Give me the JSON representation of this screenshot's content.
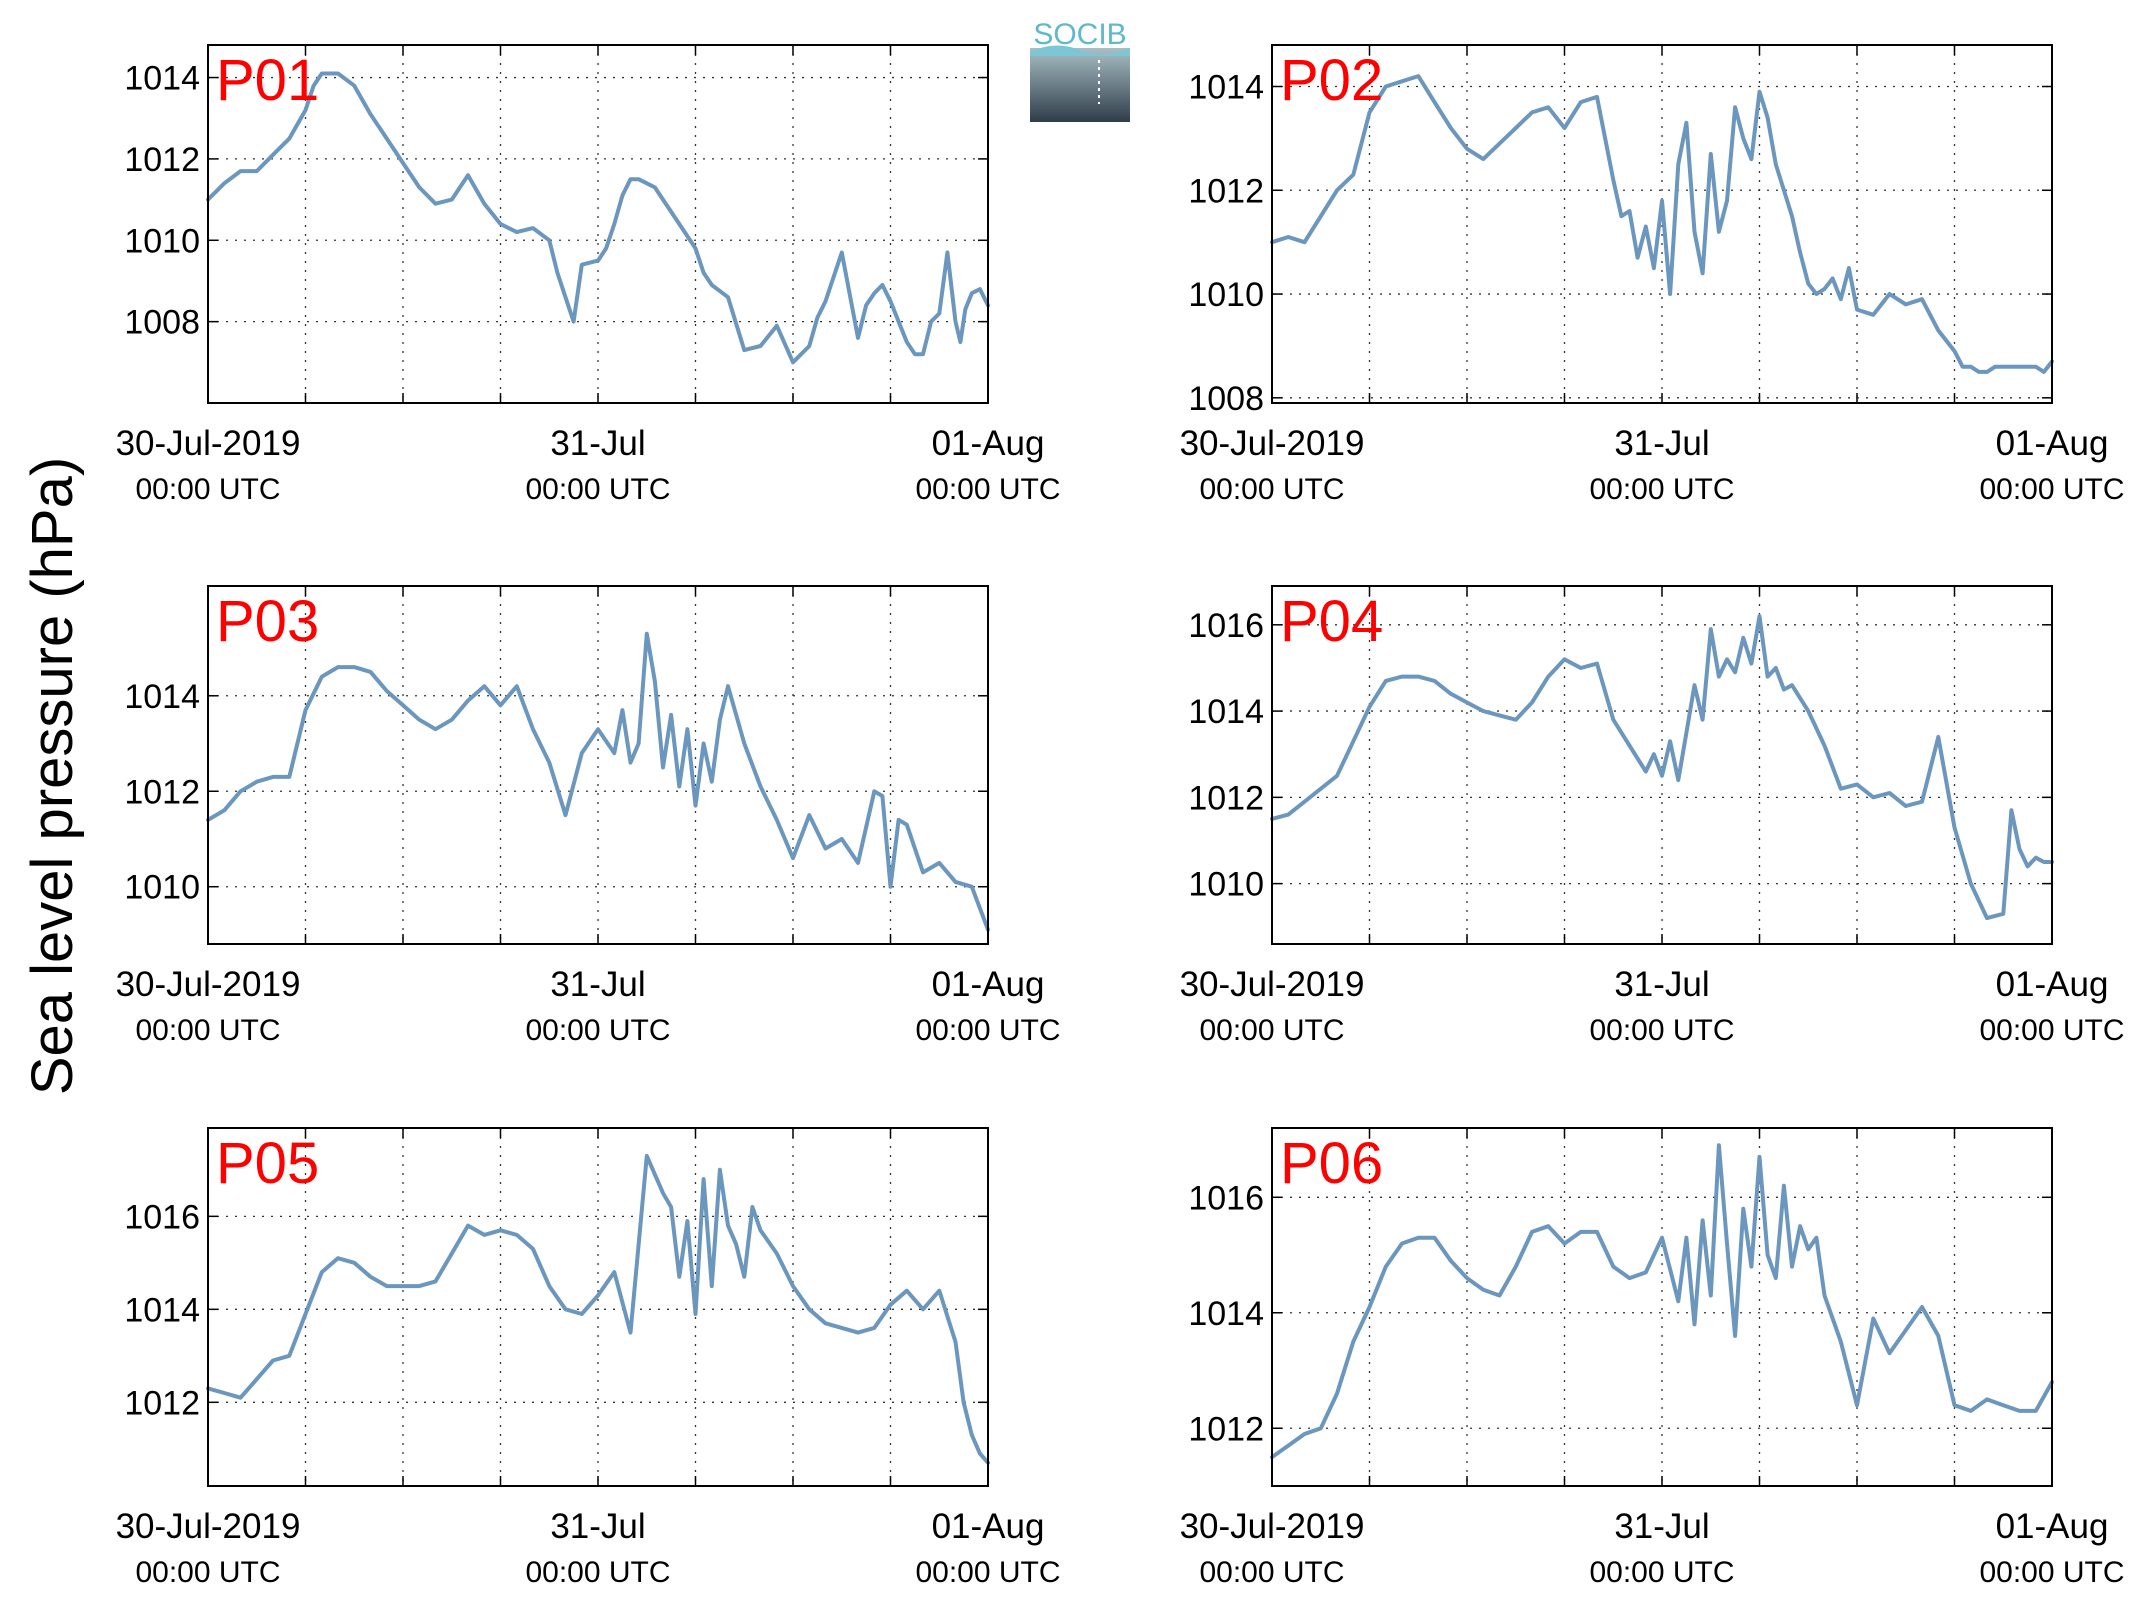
{
  "figure": {
    "ylabel": "Sea level pressure (hPa)",
    "logo_text": "SOCIB",
    "colors": {
      "line": "#6b96bd",
      "panel_label": "#ff0000",
      "logo_top": "#7cc6d6",
      "logo_bottom": "#2f3d49"
    }
  },
  "chart_data": [
    {
      "type": "line",
      "title": "P01",
      "grid": true,
      "xlim": [
        0,
        48
      ],
      "ylim": [
        1006,
        1014.8
      ],
      "x_tick_labels": [
        {
          "t": 0,
          "date": "30-Jul-2019",
          "time": "00:00 UTC"
        },
        {
          "t": 24,
          "date": "31-Jul",
          "time": "00:00 UTC"
        },
        {
          "t": 48,
          "date": "01-Aug",
          "time": "00:00 UTC"
        }
      ],
      "y_ticks": [
        1008,
        1010,
        1012,
        1014
      ],
      "series": [
        {
          "x": [
            0,
            1,
            2,
            3,
            4,
            5,
            6,
            6.5,
            7,
            8,
            9,
            10,
            11,
            12,
            13,
            14,
            15,
            16,
            17,
            18,
            19,
            20,
            21,
            21.5,
            22,
            22.5,
            23,
            24,
            24.5,
            25,
            25.5,
            26,
            26.5,
            27,
            27.5,
            28,
            29,
            30,
            30.5,
            31,
            32,
            33,
            34,
            35,
            36,
            37,
            37.5,
            38,
            39,
            40,
            40.5,
            41,
            41.5,
            42,
            42.5,
            43,
            43.5,
            44,
            44.5,
            45,
            45.5,
            46,
            46.3,
            46.6,
            47,
            47.5,
            48
          ],
          "y": [
            1011,
            1011.4,
            1011.7,
            1011.7,
            1012.1,
            1012.5,
            1013.2,
            1013.8,
            1014.1,
            1014.1,
            1013.8,
            1013.1,
            1012.5,
            1011.9,
            1011.3,
            1010.9,
            1011.0,
            1011.6,
            1010.9,
            1010.4,
            1010.2,
            1010.3,
            1010.0,
            1009.2,
            1008.6,
            1008.0,
            1009.4,
            1009.5,
            1009.8,
            1010.4,
            1011.1,
            1011.5,
            1011.5,
            1011.4,
            1011.3,
            1011.0,
            1010.4,
            1009.8,
            1009.2,
            1008.9,
            1008.6,
            1007.3,
            1007.4,
            1007.9,
            1007.0,
            1007.4,
            1008.1,
            1008.5,
            1009.7,
            1007.6,
            1008.4,
            1008.7,
            1008.9,
            1008.5,
            1008.0,
            1007.5,
            1007.2,
            1007.2,
            1008.0,
            1008.2,
            1009.7,
            1008.0,
            1007.5,
            1008.3,
            1008.7,
            1008.8,
            1008.4
          ]
        }
      ]
    },
    {
      "type": "line",
      "title": "P02",
      "grid": true,
      "xlim": [
        0,
        48
      ],
      "ylim": [
        1007.9,
        1014.8
      ],
      "x_tick_labels": [
        {
          "t": 0,
          "date": "30-Jul-2019",
          "time": "00:00 UTC"
        },
        {
          "t": 24,
          "date": "31-Jul",
          "time": "00:00 UTC"
        },
        {
          "t": 48,
          "date": "01-Aug",
          "time": "00:00 UTC"
        }
      ],
      "y_ticks": [
        1008,
        1010,
        1012,
        1014
      ],
      "series": [
        {
          "x": [
            0,
            1,
            2,
            3,
            4,
            5,
            6,
            7,
            8,
            9,
            10,
            11,
            12,
            13,
            14,
            15,
            16,
            17,
            18,
            19,
            20,
            21,
            21.5,
            22,
            22.5,
            23,
            23.5,
            24,
            24.5,
            25,
            25.5,
            26,
            26.5,
            27,
            27.5,
            28,
            28.5,
            29,
            29.5,
            30,
            30.5,
            31,
            32,
            32.5,
            33,
            33.5,
            34,
            34.5,
            35,
            35.5,
            36,
            37,
            38,
            39,
            40,
            41,
            42,
            42.5,
            43,
            43.5,
            44,
            44.5,
            45,
            46,
            47,
            47.5,
            48
          ],
          "y": [
            1011,
            1011.1,
            1011,
            1011.5,
            1012.0,
            1012.3,
            1013.5,
            1014.0,
            1014.1,
            1014.2,
            1013.7,
            1013.2,
            1012.8,
            1012.6,
            1012.9,
            1013.2,
            1013.5,
            1013.6,
            1013.2,
            1013.7,
            1013.8,
            1012.2,
            1011.5,
            1011.6,
            1010.7,
            1011.3,
            1010.5,
            1011.8,
            1010.0,
            1012.5,
            1013.3,
            1011.2,
            1010.4,
            1012.7,
            1011.2,
            1011.8,
            1013.6,
            1013.0,
            1012.6,
            1013.9,
            1013.4,
            1012.5,
            1011.5,
            1010.8,
            1010.2,
            1010.0,
            1010.1,
            1010.3,
            1009.9,
            1010.5,
            1009.7,
            1009.6,
            1010.0,
            1009.8,
            1009.9,
            1009.3,
            1008.9,
            1008.6,
            1008.6,
            1008.5,
            1008.5,
            1008.6,
            1008.6,
            1008.6,
            1008.6,
            1008.5,
            1008.7
          ]
        }
      ]
    },
    {
      "type": "line",
      "title": "P03",
      "grid": true,
      "xlim": [
        0,
        48
      ],
      "ylim": [
        1008.8,
        1016.3
      ],
      "x_tick_labels": [
        {
          "t": 0,
          "date": "30-Jul-2019",
          "time": "00:00 UTC"
        },
        {
          "t": 24,
          "date": "31-Jul",
          "time": "00:00 UTC"
        },
        {
          "t": 48,
          "date": "01-Aug",
          "time": "00:00 UTC"
        }
      ],
      "y_ticks": [
        1010,
        1012,
        1014
      ],
      "series": [
        {
          "x": [
            0,
            1,
            2,
            3,
            4,
            5,
            6,
            7,
            8,
            9,
            10,
            11,
            12,
            13,
            14,
            15,
            16,
            17,
            18,
            19,
            20,
            21,
            22,
            23,
            24,
            25,
            25.5,
            26,
            26.5,
            27,
            27.5,
            28,
            28.5,
            29,
            29.5,
            30,
            30.5,
            31,
            31.5,
            32,
            33,
            34,
            35,
            36,
            37,
            38,
            39,
            40,
            41,
            41.5,
            42,
            42.5,
            43,
            44,
            45,
            46,
            47,
            48
          ],
          "y": [
            1011.4,
            1011.6,
            1012.0,
            1012.2,
            1012.3,
            1012.3,
            1013.7,
            1014.4,
            1014.6,
            1014.6,
            1014.5,
            1014.1,
            1013.8,
            1013.5,
            1013.3,
            1013.5,
            1013.9,
            1014.2,
            1013.8,
            1014.2,
            1013.3,
            1012.6,
            1011.5,
            1012.8,
            1013.3,
            1012.8,
            1013.7,
            1012.6,
            1013.0,
            1015.3,
            1014.3,
            1012.5,
            1013.6,
            1012.1,
            1013.3,
            1011.7,
            1013.0,
            1012.2,
            1013.5,
            1014.2,
            1013.0,
            1012.1,
            1011.4,
            1010.6,
            1011.5,
            1010.8,
            1011.0,
            1010.5,
            1012.0,
            1011.9,
            1010.0,
            1011.4,
            1011.3,
            1010.3,
            1010.5,
            1010.1,
            1010.0,
            1009.1
          ]
        }
      ]
    },
    {
      "type": "line",
      "title": "P04",
      "grid": true,
      "xlim": [
        0,
        48
      ],
      "ylim": [
        1008.6,
        1016.9
      ],
      "x_tick_labels": [
        {
          "t": 0,
          "date": "30-Jul-2019",
          "time": "00:00 UTC"
        },
        {
          "t": 24,
          "date": "31-Jul",
          "time": "00:00 UTC"
        },
        {
          "t": 48,
          "date": "01-Aug",
          "time": "00:00 UTC"
        }
      ],
      "y_ticks": [
        1010,
        1012,
        1014,
        1016
      ],
      "series": [
        {
          "x": [
            0,
            1,
            2,
            3,
            4,
            5,
            6,
            7,
            8,
            9,
            10,
            11,
            12,
            13,
            14,
            15,
            16,
            17,
            18,
            19,
            20,
            21,
            22,
            23,
            23.5,
            24,
            24.5,
            25,
            25.5,
            26,
            26.5,
            27,
            27.5,
            28,
            28.5,
            29,
            29.5,
            30,
            30.5,
            31,
            31.5,
            32,
            33,
            34,
            35,
            36,
            37,
            38,
            39,
            40,
            41,
            42,
            43,
            44,
            45,
            45.5,
            46,
            46.5,
            47,
            47.5,
            48
          ],
          "y": [
            1011.5,
            1011.6,
            1011.9,
            1012.2,
            1012.5,
            1013.3,
            1014.1,
            1014.7,
            1014.8,
            1014.8,
            1014.7,
            1014.4,
            1014.2,
            1014.0,
            1013.9,
            1013.8,
            1014.2,
            1014.8,
            1015.2,
            1015.0,
            1015.1,
            1013.8,
            1013.2,
            1012.6,
            1013.0,
            1012.5,
            1013.3,
            1012.4,
            1013.5,
            1014.6,
            1013.8,
            1015.9,
            1014.8,
            1015.2,
            1014.9,
            1015.7,
            1015.1,
            1016.2,
            1014.8,
            1015.0,
            1014.5,
            1014.6,
            1014.0,
            1013.2,
            1012.2,
            1012.3,
            1012.0,
            1012.1,
            1011.8,
            1011.9,
            1013.4,
            1011.3,
            1010.0,
            1009.2,
            1009.3,
            1011.7,
            1010.8,
            1010.4,
            1010.6,
            1010.5,
            1010.5
          ]
        }
      ]
    },
    {
      "type": "line",
      "title": "P05",
      "grid": true,
      "xlim": [
        0,
        48
      ],
      "ylim": [
        1010.2,
        1017.9
      ],
      "x_tick_labels": [
        {
          "t": 0,
          "date": "30-Jul-2019",
          "time": "00:00 UTC"
        },
        {
          "t": 24,
          "date": "31-Jul",
          "time": "00:00 UTC"
        },
        {
          "t": 48,
          "date": "01-Aug",
          "time": "00:00 UTC"
        }
      ],
      "y_ticks": [
        1012,
        1014,
        1016
      ],
      "series": [
        {
          "x": [
            0,
            1,
            2,
            3,
            4,
            5,
            6,
            7,
            8,
            9,
            10,
            11,
            12,
            13,
            14,
            15,
            16,
            17,
            18,
            19,
            20,
            21,
            22,
            23,
            24,
            25,
            26,
            27,
            28,
            28.5,
            29,
            29.5,
            30,
            30.5,
            31,
            31.5,
            32,
            32.5,
            33,
            33.5,
            34,
            35,
            36,
            37,
            38,
            39,
            40,
            41,
            42,
            43,
            44,
            45,
            46,
            46.5,
            47,
            47.5,
            48
          ],
          "y": [
            1012.3,
            1012.2,
            1012.1,
            1012.5,
            1012.9,
            1013.0,
            1013.9,
            1014.8,
            1015.1,
            1015.0,
            1014.7,
            1014.5,
            1014.5,
            1014.5,
            1014.6,
            1015.2,
            1015.8,
            1015.6,
            1015.7,
            1015.6,
            1015.3,
            1014.5,
            1014.0,
            1013.9,
            1014.3,
            1014.8,
            1013.5,
            1017.3,
            1016.5,
            1016.2,
            1014.7,
            1015.9,
            1013.9,
            1016.8,
            1014.5,
            1017.0,
            1015.8,
            1015.4,
            1014.7,
            1016.2,
            1015.7,
            1015.2,
            1014.5,
            1014.0,
            1013.7,
            1013.6,
            1013.5,
            1013.6,
            1014.1,
            1014.4,
            1014.0,
            1014.4,
            1013.3,
            1012.0,
            1011.3,
            1010.9,
            1010.7
          ]
        }
      ]
    },
    {
      "type": "line",
      "title": "P06",
      "grid": true,
      "xlim": [
        0,
        48
      ],
      "ylim": [
        1011,
        1017.2
      ],
      "x_tick_labels": [
        {
          "t": 0,
          "date": "30-Jul-2019",
          "time": "00:00 UTC"
        },
        {
          "t": 24,
          "date": "31-Jul",
          "time": "00:00 UTC"
        },
        {
          "t": 48,
          "date": "01-Aug",
          "time": "00:00 UTC"
        }
      ],
      "y_ticks": [
        1012,
        1014,
        1016
      ],
      "series": [
        {
          "x": [
            0,
            1,
            2,
            3,
            4,
            5,
            6,
            7,
            8,
            9,
            10,
            11,
            12,
            13,
            14,
            15,
            16,
            17,
            18,
            19,
            20,
            21,
            22,
            23,
            24,
            25,
            25.5,
            26,
            26.5,
            27,
            27.5,
            28,
            28.5,
            29,
            29.5,
            30,
            30.5,
            31,
            31.5,
            32,
            32.5,
            33,
            33.5,
            34,
            35,
            36,
            37,
            38,
            39,
            40,
            41,
            42,
            43,
            44,
            45,
            46,
            47,
            48
          ],
          "y": [
            1011.5,
            1011.7,
            1011.9,
            1012.0,
            1012.6,
            1013.5,
            1014.1,
            1014.8,
            1015.2,
            1015.3,
            1015.3,
            1014.9,
            1014.6,
            1014.4,
            1014.3,
            1014.8,
            1015.4,
            1015.5,
            1015.2,
            1015.4,
            1015.4,
            1014.8,
            1014.6,
            1014.7,
            1015.3,
            1014.2,
            1015.3,
            1013.8,
            1015.6,
            1014.3,
            1016.9,
            1015.2,
            1013.6,
            1015.8,
            1014.8,
            1016.7,
            1015.0,
            1014.6,
            1016.2,
            1014.8,
            1015.5,
            1015.1,
            1015.3,
            1014.3,
            1013.5,
            1012.4,
            1013.9,
            1013.3,
            1013.7,
            1014.1,
            1013.6,
            1012.4,
            1012.3,
            1012.5,
            1012.4,
            1012.3,
            1012.3,
            1012.8
          ]
        }
      ]
    }
  ]
}
